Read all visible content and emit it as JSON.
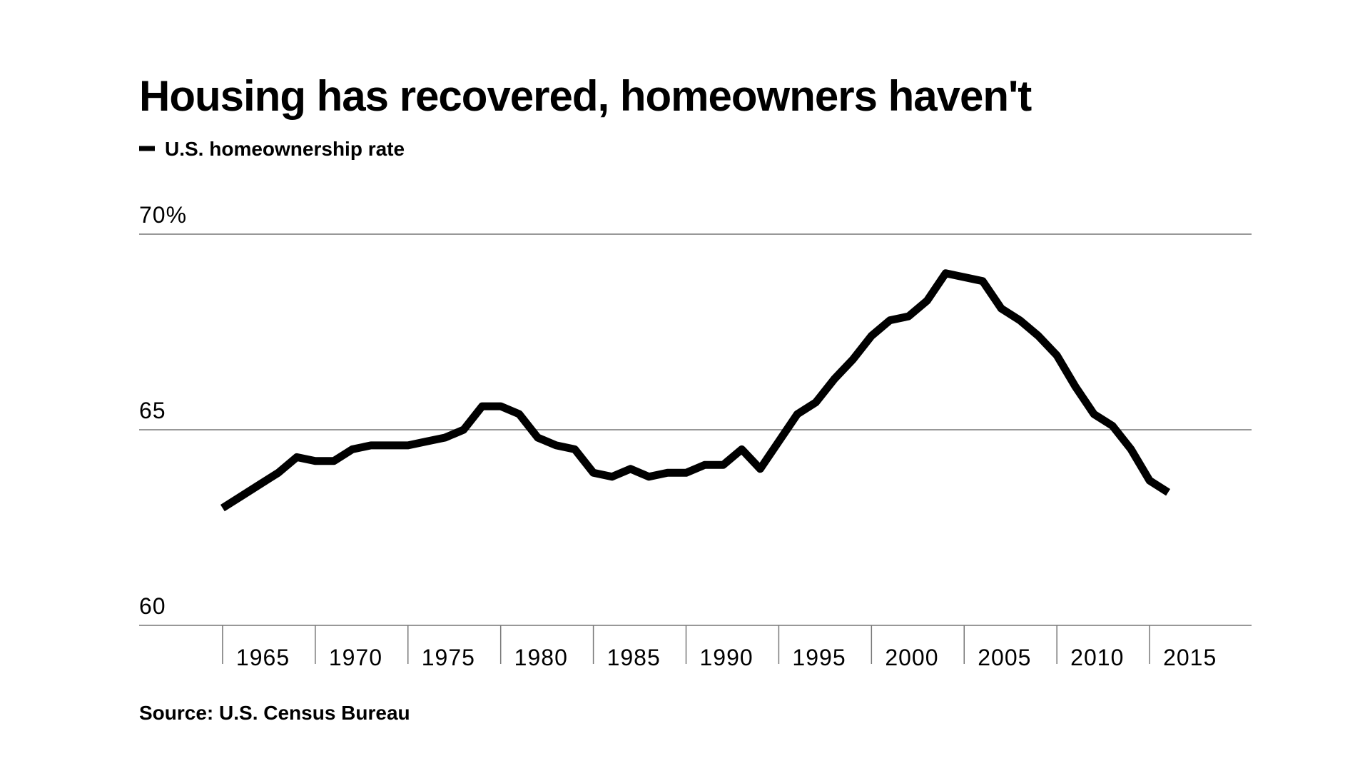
{
  "chart_data": {
    "type": "line",
    "title": "Housing has recovered, homeowners haven't",
    "source": "Source: U.S. Census Bureau",
    "x": [
      1965,
      1966,
      1967,
      1968,
      1969,
      1970,
      1971,
      1972,
      1973,
      1974,
      1975,
      1976,
      1977,
      1978,
      1979,
      1980,
      1981,
      1982,
      1983,
      1984,
      1985,
      1986,
      1987,
      1988,
      1989,
      1990,
      1991,
      1992,
      1993,
      1994,
      1995,
      1996,
      1997,
      1998,
      1999,
      2000,
      2001,
      2002,
      2003,
      2004,
      2005,
      2006,
      2007,
      2008,
      2009,
      2010,
      2011,
      2012,
      2013,
      2014,
      2015,
      2016
    ],
    "series": [
      {
        "name": "U.S. homeownership rate",
        "color": "#000000",
        "values": [
          63.0,
          63.3,
          63.6,
          63.9,
          64.3,
          64.2,
          64.2,
          64.5,
          64.6,
          64.6,
          64.6,
          64.7,
          64.8,
          65.0,
          65.6,
          65.6,
          65.4,
          64.8,
          64.6,
          64.5,
          63.9,
          63.8,
          64.0,
          63.8,
          63.9,
          63.9,
          64.1,
          64.1,
          64.5,
          64.0,
          64.7,
          65.4,
          65.7,
          66.3,
          66.8,
          67.4,
          67.8,
          67.9,
          68.3,
          69.0,
          68.9,
          68.8,
          68.1,
          67.8,
          67.4,
          66.9,
          66.1,
          65.4,
          65.1,
          64.5,
          63.7,
          63.4
        ]
      }
    ],
    "xlim": [
      1960.5,
      2020.5
    ],
    "xticks": [
      1965,
      1970,
      1975,
      1980,
      1985,
      1990,
      1995,
      2000,
      2005,
      2010,
      2015
    ],
    "ylim": [
      60,
      70
    ],
    "yticks": [
      60,
      65,
      {
        "value": 70,
        "label": "70%"
      }
    ],
    "grid": true
  }
}
